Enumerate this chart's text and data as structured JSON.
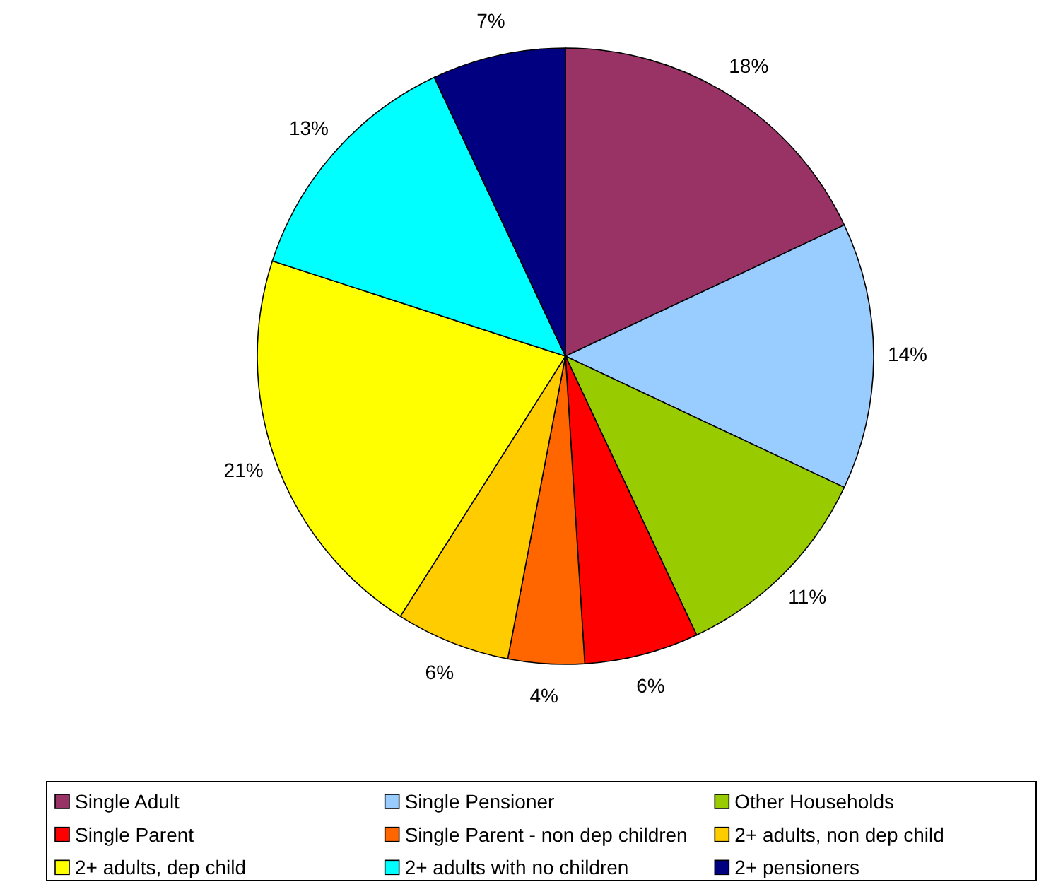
{
  "chart_data": {
    "type": "pie",
    "categories": [
      "Single Adult",
      "Single Pensioner",
      "Other Households",
      "Single Parent",
      "Single Parent - non dep children",
      "2+ adults, non dep child",
      "2+ adults, dep child",
      "2+ adults with no children",
      "2+ pensioners"
    ],
    "values": [
      18,
      14,
      11,
      6,
      4,
      6,
      21,
      13,
      7
    ],
    "colors": [
      "#993366",
      "#99ccff",
      "#99cc00",
      "#ff0000",
      "#ff6600",
      "#ffcc00",
      "#ffff00",
      "#00ffff",
      "#000080"
    ],
    "value_labels": [
      "18%",
      "14%",
      "11%",
      "6%",
      "4%",
      "6%",
      "21%",
      "13%",
      "7%"
    ],
    "legend": "bottom"
  }
}
